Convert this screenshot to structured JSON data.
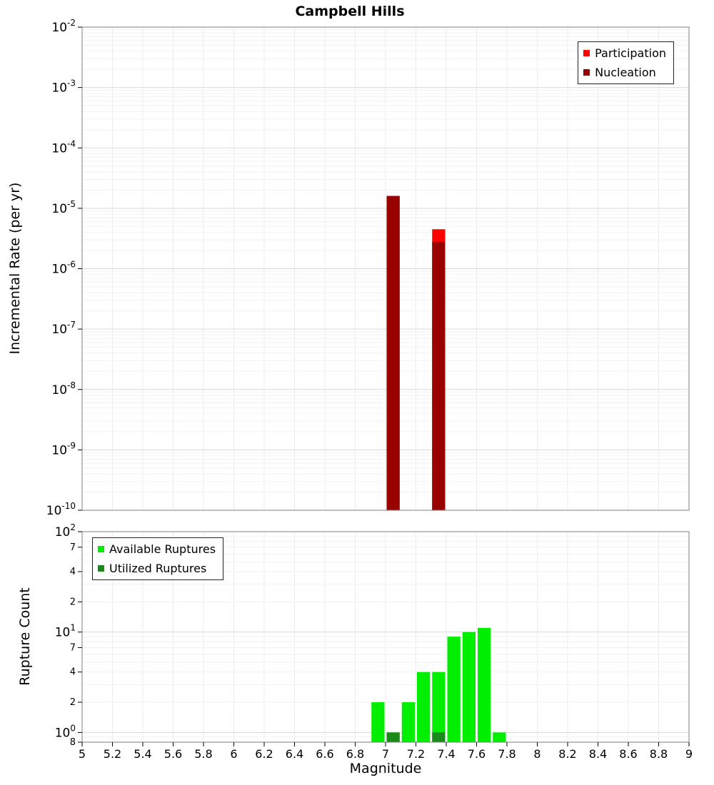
{
  "x_axis": {
    "range": [
      5,
      9
    ],
    "ticks": [
      {
        "value": 5,
        "label": "5"
      },
      {
        "value": 5.2,
        "label": "5.2"
      },
      {
        "value": 5.4,
        "label": "5.4"
      },
      {
        "value": 5.6,
        "label": "5.6"
      },
      {
        "value": 5.8,
        "label": "5.8"
      },
      {
        "value": 6,
        "label": "6"
      },
      {
        "value": 6.2,
        "label": "6.2"
      },
      {
        "value": 6.4,
        "label": "6.4"
      },
      {
        "value": 6.6,
        "label": "6.6"
      },
      {
        "value": 6.8,
        "label": "6.8"
      },
      {
        "value": 7,
        "label": "7"
      },
      {
        "value": 7.2,
        "label": "7.2"
      },
      {
        "value": 7.4,
        "label": "7.4"
      },
      {
        "value": 7.6,
        "label": "7.6"
      },
      {
        "value": 7.8,
        "label": "7.8"
      },
      {
        "value": 8,
        "label": "8"
      },
      {
        "value": 8.2,
        "label": "8.2"
      },
      {
        "value": 8.4,
        "label": "8.4"
      },
      {
        "value": 8.6,
        "label": "8.6"
      },
      {
        "value": 8.8,
        "label": "8.8"
      },
      {
        "value": 9,
        "label": "9"
      }
    ]
  },
  "chart_data": [
    {
      "type": "bar",
      "name": "incremental-rate",
      "title": "Campbell Hills",
      "xlabel": "Magnitude",
      "ylabel": "Incremental Rate (per yr)",
      "x_range": [
        5,
        9
      ],
      "y_scale": "log",
      "y_range": [
        1e-10,
        0.01
      ],
      "bin_width": 0.1,
      "grid": true,
      "legend_position": "top-right",
      "y_ticks": [
        {
          "value": 0.01,
          "label": "10^-2"
        },
        {
          "value": 0.001,
          "label": "10^-3"
        },
        {
          "value": 0.0001,
          "label": "10^-4"
        },
        {
          "value": 1e-05,
          "label": "10^-5"
        },
        {
          "value": 1e-06,
          "label": "10^-6"
        },
        {
          "value": 1e-07,
          "label": "10^-7"
        },
        {
          "value": 1e-08,
          "label": "10^-8"
        },
        {
          "value": 1e-09,
          "label": "10^-9"
        },
        {
          "value": 1e-10,
          "label": "10^-10"
        }
      ],
      "series": [
        {
          "name": "Participation",
          "color": "#ff0000",
          "x": [
            7.05,
            7.35
          ],
          "y": [
            1.6e-05,
            4.5e-06
          ]
        },
        {
          "name": "Nucleation",
          "color": "#990000",
          "x": [
            7.05,
            7.35
          ],
          "y": [
            1.6e-05,
            2.8e-06
          ]
        }
      ]
    },
    {
      "type": "bar",
      "name": "rupture-count",
      "xlabel": "Magnitude",
      "ylabel": "Rupture Count",
      "x_range": [
        5,
        9
      ],
      "y_scale": "log",
      "y_range": [
        0.8,
        100
      ],
      "bin_width": 0.1,
      "grid": true,
      "legend_position": "top-left",
      "y_ticks": [
        {
          "value": 100,
          "label": "10^2"
        },
        {
          "value": 70,
          "label": "7"
        },
        {
          "value": 40,
          "label": "4"
        },
        {
          "value": 20,
          "label": "2"
        },
        {
          "value": 10,
          "label": "10^1"
        },
        {
          "value": 7,
          "label": "7"
        },
        {
          "value": 4,
          "label": "4"
        },
        {
          "value": 2,
          "label": "2"
        },
        {
          "value": 1,
          "label": "10^0"
        },
        {
          "value": 0.8,
          "label": "8"
        }
      ],
      "series": [
        {
          "name": "Available Ruptures",
          "color": "#00ee00",
          "x": [
            6.95,
            7.05,
            7.15,
            7.25,
            7.35,
            7.45,
            7.55,
            7.65,
            7.75
          ],
          "y": [
            2,
            1,
            2,
            4,
            4,
            9,
            10,
            11,
            1
          ]
        },
        {
          "name": "Utilized Ruptures",
          "color": "#1a8a1a",
          "x": [
            7.05,
            7.35
          ],
          "y": [
            1,
            1
          ]
        }
      ]
    }
  ]
}
